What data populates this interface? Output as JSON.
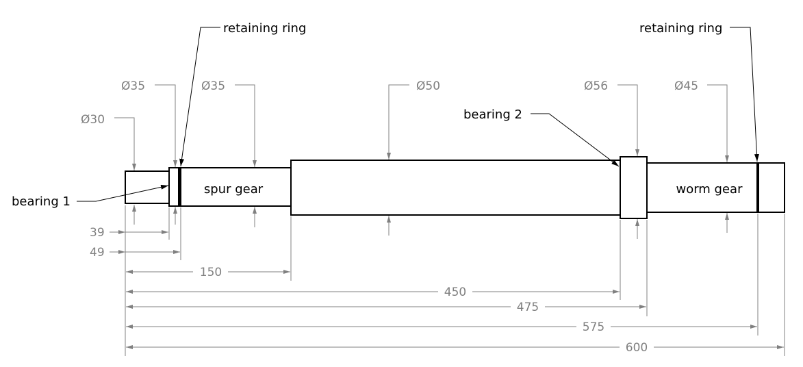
{
  "colors": {
    "outline": "#000000",
    "dimension": "#808080",
    "background": "#ffffff"
  },
  "diameters": {
    "d1": "Ø30",
    "d2": "Ø35",
    "d3": "Ø35",
    "d4": "Ø50",
    "d5": "Ø56",
    "d6": "Ø45"
  },
  "lengths": {
    "l1": "39",
    "l2": "49",
    "l3": "150",
    "l4": "450",
    "l5": "475",
    "l6": "575",
    "l7": "600"
  },
  "notes": {
    "bearing1": "bearing 1",
    "bearing2": "bearing 2",
    "retaining_ring_left": "retaining ring",
    "retaining_ring_right": "retaining ring",
    "spur_gear": "spur gear",
    "worm_gear": "worm gear"
  }
}
